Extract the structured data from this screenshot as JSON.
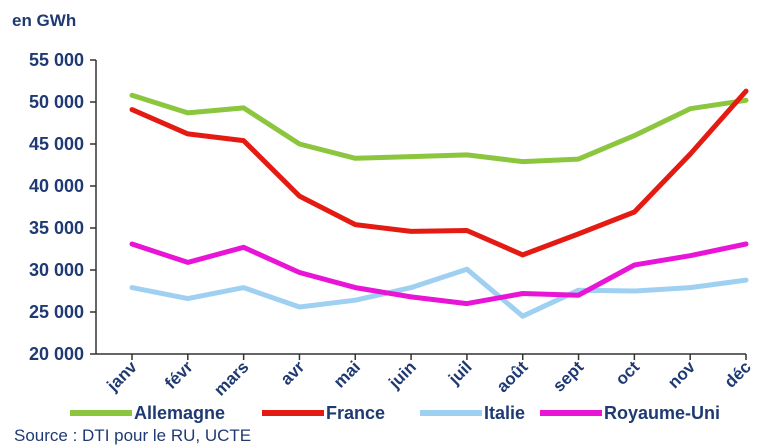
{
  "chart_data": {
    "type": "line",
    "ylabel": "en GWh",
    "ylim": [
      20000,
      55000
    ],
    "yticks": [
      20000,
      25000,
      30000,
      35000,
      40000,
      45000,
      50000,
      55000
    ],
    "ytick_labels": [
      "20 000",
      "25 000",
      "30 000",
      "35 000",
      "40 000",
      "45 000",
      "50 000",
      "55 000"
    ],
    "categories": [
      "janv",
      "févr",
      "mars",
      "avr",
      "mai",
      "juin",
      "juil",
      "août",
      "sept",
      "oct",
      "nov",
      "déc"
    ],
    "grid": false,
    "legend_position": "bottom",
    "series": [
      {
        "name": "Allemagne",
        "color": "#8cc63f",
        "values": [
          50800,
          48700,
          49300,
          45000,
          43300,
          43500,
          43700,
          42900,
          43200,
          46000,
          49200,
          50200
        ]
      },
      {
        "name": "France",
        "color": "#e41b13",
        "values": [
          49100,
          46200,
          45400,
          38800,
          35400,
          34600,
          34700,
          31800,
          34300,
          36900,
          43800,
          51300
        ]
      },
      {
        "name": "Italie",
        "color": "#9fd0f2",
        "values": [
          27900,
          26600,
          27900,
          25600,
          26400,
          27900,
          30100,
          24500,
          27600,
          27500,
          27900,
          28800
        ]
      },
      {
        "name": "Royaume-Uni",
        "color": "#e815d6",
        "values": [
          33100,
          30900,
          32700,
          29700,
          27900,
          26800,
          26000,
          27200,
          27000,
          30600,
          31700,
          33100
        ]
      }
    ],
    "source": "Source : DTI pour le RU, UCTE"
  }
}
